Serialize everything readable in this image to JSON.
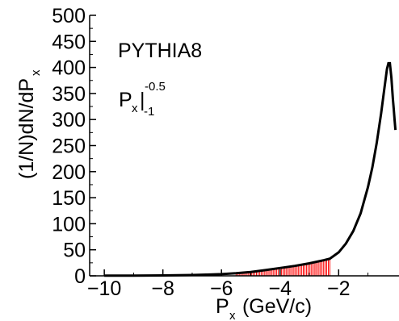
{
  "chart_data": {
    "type": "line",
    "title": "",
    "xlabel": {
      "main": "P",
      "sub": "x",
      "rest": " (GeV/c)"
    },
    "ylabel": {
      "main": "(1/N)dN/dP",
      "sub": "x"
    },
    "xlim": [
      -10.5,
      -0.05
    ],
    "ylim": [
      0,
      500
    ],
    "xticks": [
      -10,
      -8,
      -6,
      -4,
      -2
    ],
    "xtick_labels": [
      "−10",
      "−8",
      "−6",
      "−4",
      "−2"
    ],
    "yticks": [
      0,
      50,
      100,
      150,
      200,
      250,
      300,
      350,
      400,
      450,
      500
    ],
    "ytick_labels": [
      "0",
      "50",
      "100",
      "150",
      "200",
      "250",
      "300",
      "350",
      "400",
      "450",
      "500"
    ],
    "annotations": {
      "generator": "PYTHIA8",
      "range": {
        "base": "P",
        "sub": "x",
        "bar": "|",
        "upper": "-0.5",
        "lower": "-1"
      }
    },
    "curve_color": "#000000",
    "fill_color": "#ff0000",
    "fill_range": [
      -5.5,
      -2.3
    ],
    "series": [
      {
        "x": [
          -10,
          -9.5,
          -9,
          -8.5,
          -8,
          -7.5,
          -7,
          -6.5,
          -6,
          -5.5,
          -5,
          -4.5,
          -4,
          -3.5,
          -3,
          -2.5,
          -2.3,
          -2,
          -1.75,
          -1.5,
          -1.25,
          -1,
          -0.85,
          -0.7,
          -0.55,
          -0.45,
          -0.35,
          -0.3,
          -0.25,
          -0.2,
          -0.15,
          -0.12,
          -0.09,
          -0.06
        ],
        "y": [
          0.3,
          0.4,
          0.5,
          0.6,
          0.8,
          1.1,
          1.6,
          2.3,
          3.3,
          5,
          7.5,
          11,
          15,
          19,
          24,
          30,
          33,
          45,
          62,
          86,
          120,
          170,
          208,
          255,
          312,
          355,
          397,
          408,
          408,
          380,
          340,
          320,
          300,
          280
        ]
      }
    ]
  }
}
